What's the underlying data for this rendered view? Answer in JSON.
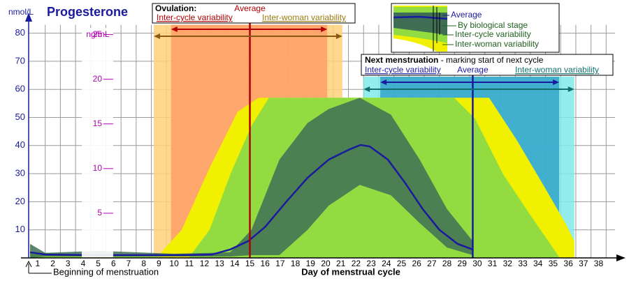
{
  "chart_data": {
    "type": "line",
    "title": "Progesterone",
    "y_label": "nmol/L",
    "y2_label": "ng/mL",
    "x_label": "Day of menstrual cycle",
    "x_start_label": "Beginning of menstruation",
    "xlim": [
      0.5,
      39.5
    ],
    "ylim": [
      0,
      83
    ],
    "y2lim": [
      0,
      26.1
    ],
    "xticks": [
      1,
      2,
      3,
      4,
      5,
      6,
      7,
      8,
      9,
      10,
      11,
      12,
      13,
      14,
      15,
      16,
      17,
      18,
      19,
      20,
      21,
      22,
      23,
      24,
      25,
      26,
      27,
      28,
      29,
      30,
      31,
      32,
      33,
      34,
      35,
      36,
      37,
      38
    ],
    "yticks": [
      10,
      20,
      30,
      40,
      50,
      60,
      70,
      80
    ],
    "y2ticks": [
      5,
      10,
      15,
      20,
      25
    ],
    "grid": true,
    "series": [
      {
        "name": "Inter-woman variability",
        "color": "#f0f000",
        "area": true,
        "x": [
          0.5,
          8.9,
          10.5,
          12.34,
          14.19,
          15.57,
          30.78,
          32.6,
          34.46,
          35.85,
          36.4
        ],
        "values": [
          1,
          0.5,
          10,
          32,
          52,
          57,
          57,
          42,
          25,
          12,
          6
        ]
      },
      {
        "name": "Inter-cycle variability",
        "color": "#92dc42",
        "area": true,
        "x": [
          0.5,
          10.96,
          12.34,
          13.73,
          15.1,
          16.26,
          28.47,
          29.85,
          31.7,
          33.54,
          35.38
        ],
        "values": [
          2,
          0,
          10,
          30,
          47,
          57,
          57,
          49.6,
          29.8,
          14.9,
          0.5
        ]
      },
      {
        "name": "By biological stage",
        "color": "#3f6e55",
        "x": [
          0.5,
          1.5,
          5,
          10,
          13.7,
          15.1,
          16.95,
          18.8,
          20.2,
          22.25,
          24.3,
          26.2,
          28.0,
          29.7
        ],
        "upper": [
          5,
          1.8,
          2.5,
          1.5,
          2,
          10,
          35,
          48,
          53,
          57,
          51,
          35,
          17.4,
          6
        ],
        "lower": [
          0,
          0.5,
          0.5,
          0.5,
          0.5,
          1,
          1,
          10,
          18.6,
          26,
          22.3,
          12.4,
          3.7,
          1
        ]
      },
      {
        "name": "Average",
        "color": "#1a1a9e",
        "x": [
          0.5,
          1.5,
          4.5,
          10.5,
          12.5,
          13.7,
          14.9,
          16,
          17.4,
          18.8,
          20.2,
          21.6,
          22.3,
          22.9,
          24.1,
          25.2,
          26.4,
          27.5,
          28.7,
          29.7
        ],
        "values": [
          2,
          1.2,
          1,
          1,
          1.2,
          3,
          6,
          11,
          20,
          28.5,
          35,
          38.7,
          40.2,
          39.7,
          35,
          27,
          17.4,
          10,
          5,
          3
        ]
      }
    ],
    "ovulation": {
      "title": "Ovulation:",
      "average_label": "Average",
      "inter_cycle_label": "Inter-cycle variability",
      "inter_woman_label": "Inter-woman variability",
      "average": 15,
      "inter_cycle": [
        9.8,
        20.1
      ],
      "inter_woman": [
        8.66,
        21.1
      ],
      "average_color": "#b00000",
      "inter_cycle_color": "#ff9f66",
      "inter_woman_color": "#ffd07a",
      "inter_cycle_text_color": "#b00000",
      "inter_woman_text_color": "#9a7a10"
    },
    "next_menstruation": {
      "title": "Next menstruation",
      "subtitle": " - marking start of next cycle",
      "average_label": "Average",
      "inter_cycle_label": "Inter-cycle variability",
      "inter_woman_label": "Inter-woman variability",
      "average": 29.7,
      "inter_cycle": [
        23.6,
        35.4
      ],
      "inter_woman": [
        22.5,
        36.4
      ],
      "average_color": "#1a1a9e",
      "inter_cycle_color": "#33a3c8",
      "inter_woman_color": "#80eaea",
      "inter_cycle_text_color": "#1a1a9e",
      "inter_woman_text_color": "#107070"
    }
  }
}
